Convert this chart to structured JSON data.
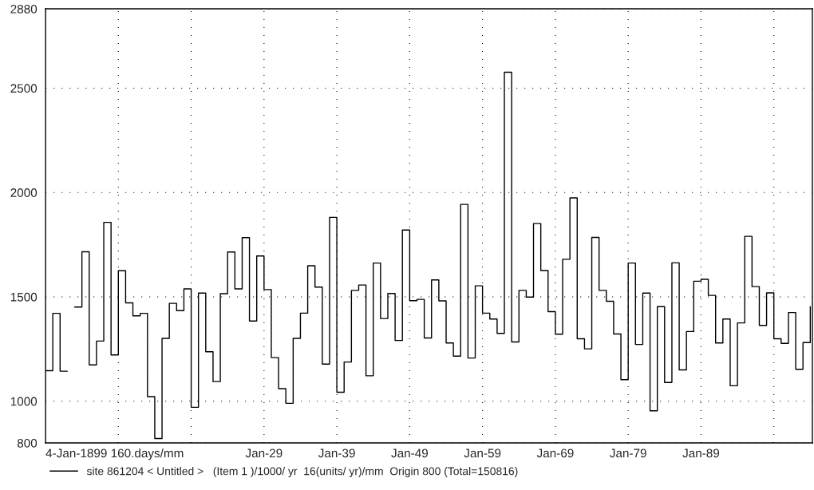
{
  "chart_data": {
    "type": "step",
    "x": [
      "1899-01-04",
      "1900",
      "1901",
      "1902",
      "1903",
      "1904",
      "1905",
      "1906",
      "1907",
      "1908",
      "1909",
      "1910",
      "1911",
      "1912",
      "1913",
      "1914",
      "1915",
      "1916",
      "1917",
      "1918",
      "1919",
      "1920",
      "1921",
      "1922",
      "1923",
      "1924",
      "1925",
      "1926",
      "1927",
      "1928",
      "1929",
      "1930",
      "1931",
      "1932",
      "1933",
      "1934",
      "1935",
      "1936",
      "1937",
      "1938",
      "1939",
      "1940",
      "1941",
      "1942",
      "1943",
      "1944",
      "1945",
      "1946",
      "1947",
      "1948",
      "1949",
      "1950",
      "1951",
      "1952",
      "1953",
      "1954",
      "1955",
      "1956",
      "1957",
      "1958",
      "1959",
      "1960",
      "1961",
      "1962",
      "1963",
      "1964",
      "1965",
      "1966",
      "1967",
      "1968",
      "1969",
      "1970",
      "1971",
      "1972",
      "1973",
      "1974",
      "1975",
      "1976",
      "1977",
      "1978",
      "1979",
      "1980",
      "1981",
      "1982",
      "1983",
      "1984",
      "1985",
      "1986",
      "1987",
      "1988",
      "1989",
      "1990",
      "1991",
      "1992",
      "1993",
      "1994",
      "1995",
      "1996",
      "1997",
      "1998",
      "1999",
      "2000",
      "2001",
      "2002",
      "2003",
      "2004"
    ],
    "series": [
      {
        "name": "site 861204 < Untitled >   (Item 1 )/1000/ yr  16(units/ yr)/mm  Origin 800 (Total=150816)",
        "color": "#000000",
        "values": [
          1146,
          1421,
          1144,
          null,
          1451,
          1716,
          1174,
          1288,
          1857,
          1222,
          1625,
          1471,
          1409,
          1421,
          1022,
          821,
          1301,
          1469,
          1434,
          1538,
          971,
          1518,
          1237,
          1094,
          1515,
          1715,
          1538,
          1784,
          1384,
          1696,
          1535,
          1209,
          1060,
          990,
          1301,
          1422,
          1649,
          1547,
          1178,
          1881,
          1043,
          1188,
          1531,
          1557,
          1122,
          1662,
          1396,
          1516,
          1291,
          1820,
          1482,
          1488,
          1303,
          1581,
          1481,
          1279,
          1216,
          1943,
          1207,
          1553,
          1422,
          1394,
          1325,
          2576,
          1284,
          1531,
          1499,
          1851,
          1626,
          1429,
          1321,
          1680,
          1974,
          1299,
          1251,
          1785,
          1531,
          1479,
          1322,
          1103,
          1662,
          1272,
          1518,
          954,
          1453,
          1090,
          1663,
          1150,
          1334,
          1575,
          1584,
          1507,
          1279,
          1394,
          1074,
          1375,
          1790,
          1549,
          1363,
          1519,
          1299,
          1277,
          1425,
          1153,
          1281,
          1453
        ]
      }
    ],
    "xlim": [
      "1899-01-04",
      "2004-04-15"
    ],
    "xticks": [
      {
        "value": "1899-01-04",
        "label": "4-Jan-1899 160.days/mm"
      },
      {
        "value": "1909-01",
        "label": null
      },
      {
        "value": "1919-01",
        "label": null
      },
      {
        "value": "1929-01",
        "label": "Jan-29"
      },
      {
        "value": "1939-01",
        "label": "Jan-39"
      },
      {
        "value": "1949-01",
        "label": "Jan-49"
      },
      {
        "value": "1959-01",
        "label": "Jan-59"
      },
      {
        "value": "1969-01",
        "label": "Jan-69"
      },
      {
        "value": "1979-01",
        "label": "Jan-79"
      },
      {
        "value": "1989-01",
        "label": "Jan-89"
      },
      {
        "value": "1999-01",
        "label": null
      }
    ],
    "ylim": [
      800,
      2880
    ],
    "yticks": [
      800,
      1000,
      1500,
      2000,
      2500,
      2880
    ],
    "grid": true,
    "legend": "bottom",
    "line_style": "solid"
  }
}
